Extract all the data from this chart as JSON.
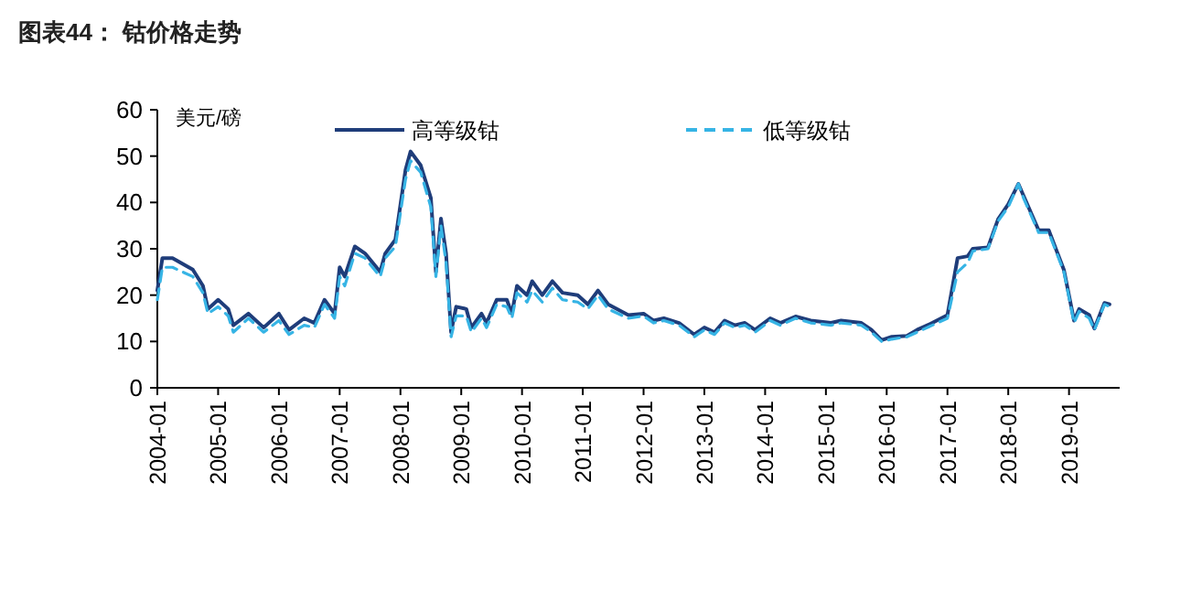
{
  "chart_data": {
    "type": "line",
    "title": "图表44： 钴价格走势",
    "ylabel": "美元/磅",
    "x": [
      "2004-01",
      "2004-02",
      "2004-04",
      "2004-08",
      "2004-10",
      "2004-11",
      "2005-01",
      "2005-03",
      "2005-04",
      "2005-07",
      "2005-10",
      "2006-01",
      "2006-03",
      "2006-06",
      "2006-08",
      "2006-10",
      "2006-12",
      "2007-01",
      "2007-02",
      "2007-04",
      "2007-06",
      "2007-09",
      "2007-10",
      "2007-12",
      "2008-02",
      "2008-03",
      "2008-05",
      "2008-07",
      "2008-08",
      "2008-09",
      "2008-10",
      "2008-11",
      "2008-12",
      "2009-02",
      "2009-03",
      "2009-05",
      "2009-06",
      "2009-08",
      "2009-10",
      "2009-11",
      "2009-12",
      "2010-02",
      "2010-03",
      "2010-05",
      "2010-07",
      "2010-09",
      "2010-12",
      "2011-02",
      "2011-04",
      "2011-06",
      "2011-10",
      "2012-01",
      "2012-03",
      "2012-05",
      "2012-08",
      "2012-11",
      "2013-01",
      "2013-03",
      "2013-05",
      "2013-07",
      "2013-09",
      "2013-11",
      "2014-02",
      "2014-04",
      "2014-07",
      "2014-10",
      "2015-02",
      "2015-04",
      "2015-08",
      "2015-10",
      "2015-12",
      "2016-02",
      "2016-05",
      "2016-07",
      "2016-10",
      "2017-01",
      "2017-03",
      "2017-05",
      "2017-06",
      "2017-09",
      "2017-11",
      "2018-01",
      "2018-03",
      "2018-04",
      "2018-07",
      "2018-09",
      "2018-12",
      "2019-02",
      "2019-03",
      "2019-05",
      "2019-06",
      "2019-08",
      "2019-09"
    ],
    "series": [
      {
        "name": "高等级钴",
        "color": "#1f3d7a",
        "line_style": "solid",
        "values": [
          21,
          28,
          28,
          25.5,
          22,
          17,
          19,
          17,
          13.5,
          16,
          13,
          16,
          12.5,
          15,
          14,
          19,
          16,
          26,
          24,
          30.5,
          29,
          25,
          29,
          32,
          47,
          51,
          48,
          41,
          25,
          36.5,
          29,
          12,
          17.5,
          17,
          13,
          16,
          14,
          19,
          19,
          16,
          22,
          20,
          23,
          20,
          23,
          20.5,
          20,
          18,
          21,
          18,
          15.7,
          16,
          14.5,
          15,
          14,
          11.5,
          13,
          12,
          14.5,
          13.5,
          14,
          12.5,
          15,
          14,
          15.4,
          14.5,
          14,
          14.5,
          14,
          12.5,
          10.3,
          11,
          11.2,
          12.5,
          14,
          15.7,
          28,
          28.4,
          30,
          30.3,
          36.4,
          39.6,
          44,
          41.5,
          34,
          34,
          25.4,
          14.5,
          17,
          15.7,
          12.8,
          18.3,
          18
        ]
      },
      {
        "name": "低等级钴",
        "color": "#36b4e5",
        "line_style": "dashed",
        "values": [
          19,
          26,
          26,
          24,
          20.5,
          16,
          17.5,
          15.5,
          12,
          15,
          12,
          14.5,
          11.5,
          13.5,
          13,
          18,
          15,
          24,
          22,
          29,
          28,
          24,
          28,
          30.5,
          45,
          49,
          46.5,
          39,
          24,
          35,
          27,
          11,
          15.5,
          15.5,
          12,
          15,
          13,
          18,
          17.5,
          15,
          20.5,
          18.5,
          21,
          18.5,
          21.5,
          19,
          18.5,
          17,
          20,
          17,
          15,
          15.5,
          14,
          14.5,
          13.5,
          11,
          12.5,
          11.5,
          14,
          13,
          13.5,
          12,
          14.5,
          13.5,
          15,
          14,
          13.5,
          14,
          13.5,
          12,
          10,
          10.5,
          11,
          12,
          13.5,
          15,
          25,
          27,
          29.5,
          30,
          36,
          39,
          44,
          41,
          33.5,
          33.5,
          25,
          14,
          16.5,
          15,
          12.5,
          18,
          17.5
        ]
      }
    ],
    "xlim": [
      "2004-01",
      "2019-11"
    ],
    "xticks": [
      "2004-01",
      "2005-01",
      "2006-01",
      "2007-01",
      "2008-01",
      "2009-01",
      "2010-01",
      "2011-01",
      "2012-01",
      "2013-01",
      "2014-01",
      "2015-01",
      "2016-01",
      "2017-01",
      "2018-01",
      "2019-01"
    ],
    "ylim": [
      0,
      60
    ],
    "yticks": [
      0,
      10,
      20,
      30,
      40,
      50,
      60
    ],
    "grid": false,
    "legend": "top"
  }
}
